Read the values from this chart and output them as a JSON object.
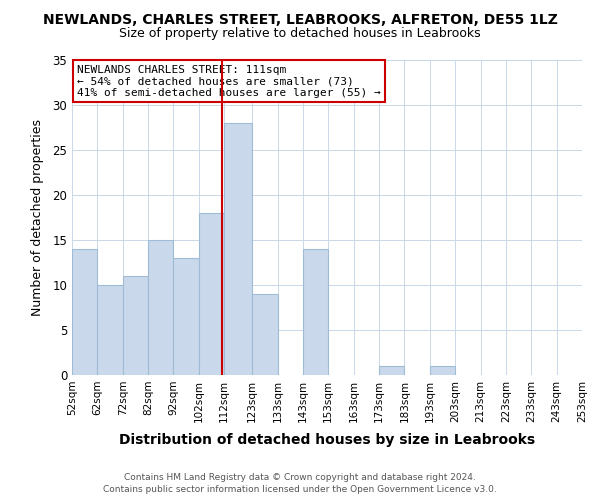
{
  "title": "NEWLANDS, CHARLES STREET, LEABROOKS, ALFRETON, DE55 1LZ",
  "subtitle": "Size of property relative to detached houses in Leabrooks",
  "xlabel": "Distribution of detached houses by size in Leabrooks",
  "ylabel": "Number of detached properties",
  "bar_color": "#c9d9eb",
  "bar_edgecolor": "#a0bcd4",
  "gridcolor": "#c8d8e8",
  "vline_x": 111,
  "vline_color": "#cc0000",
  "annotation_line1": "NEWLANDS CHARLES STREET: 111sqm",
  "annotation_line2": "← 54% of detached houses are smaller (73)",
  "annotation_line3": "41% of semi-detached houses are larger (55) →",
  "annotation_box_edgecolor": "#cc0000",
  "footer1": "Contains HM Land Registry data © Crown copyright and database right 2024.",
  "footer2": "Contains public sector information licensed under the Open Government Licence v3.0.",
  "bins": [
    52,
    62,
    72,
    82,
    92,
    102,
    112,
    123,
    133,
    143,
    153,
    163,
    173,
    183,
    193,
    203,
    213,
    223,
    233,
    243,
    253
  ],
  "counts": [
    14,
    10,
    11,
    15,
    13,
    18,
    28,
    9,
    0,
    14,
    0,
    0,
    1,
    0,
    1,
    0,
    0,
    0,
    0,
    0
  ],
  "ylim": [
    0,
    35
  ],
  "yticks": [
    0,
    5,
    10,
    15,
    20,
    25,
    30,
    35
  ],
  "tick_labels": [
    "52sqm",
    "62sqm",
    "72sqm",
    "82sqm",
    "92sqm",
    "102sqm",
    "112sqm",
    "123sqm",
    "133sqm",
    "143sqm",
    "153sqm",
    "163sqm",
    "173sqm",
    "183sqm",
    "193sqm",
    "203sqm",
    "213sqm",
    "223sqm",
    "233sqm",
    "243sqm",
    "253sqm"
  ]
}
